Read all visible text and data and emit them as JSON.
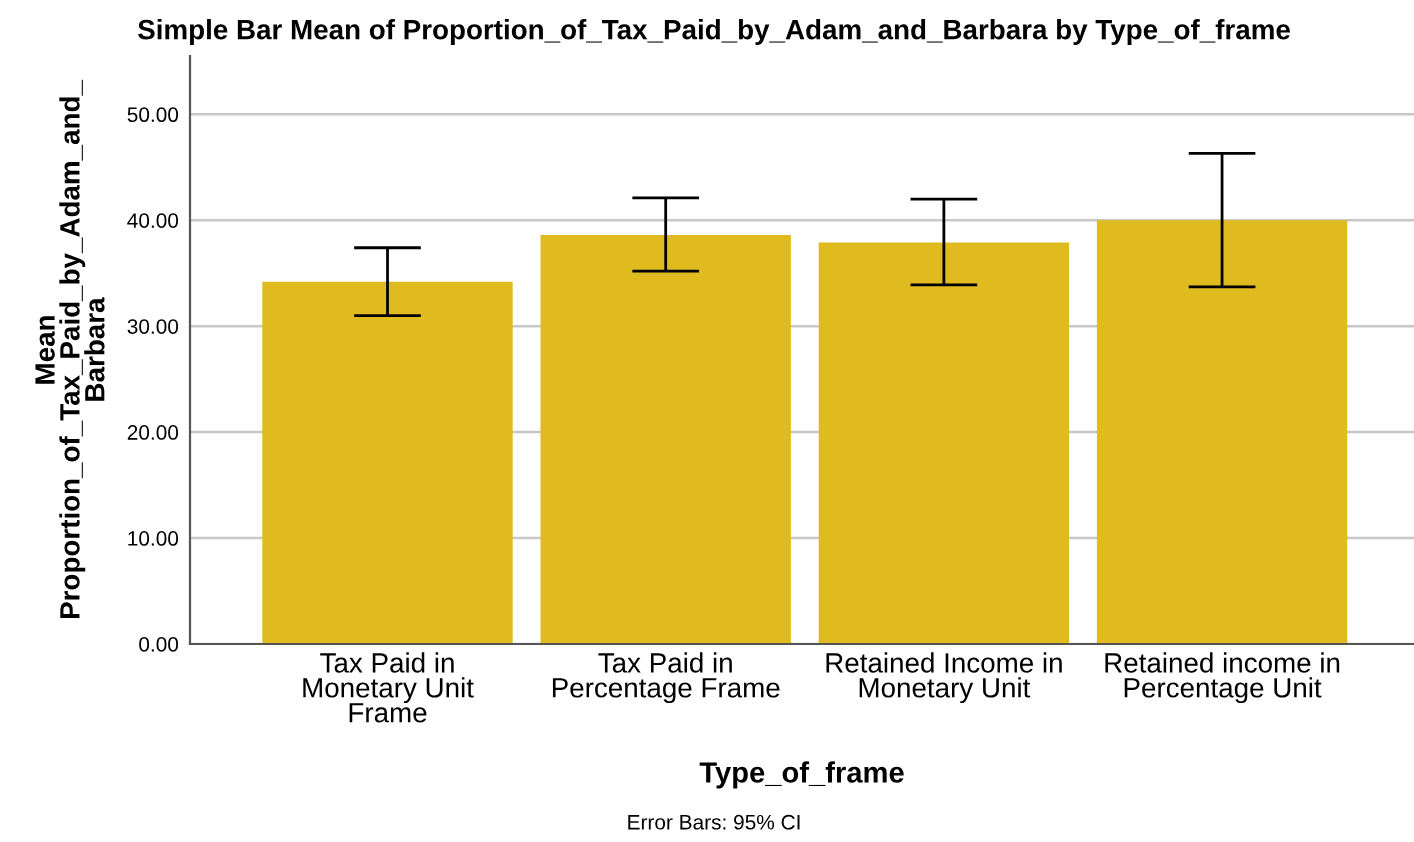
{
  "chart_data": {
    "type": "bar",
    "title": "Simple Bar Mean of Proportion_of_Tax_Paid_by_Adam_and_Barbara by Type_of_frame",
    "xlabel": "Type_of_frame",
    "ylabel": "Mean\nProportion_of_Tax_Paid_by_Adam_and_\nBarbara",
    "categories": [
      "Tax Paid in\nMonetary Unit\nFrame",
      "Tax Paid in\nPercentage Frame",
      "Retained Income in\nMonetary Unit",
      "Retained income in\nPercentage Unit"
    ],
    "values": [
      34.2,
      38.6,
      37.9,
      40.0
    ],
    "errors": [
      [
        31.0,
        37.4
      ],
      [
        35.2,
        42.1
      ],
      [
        33.9,
        42.0
      ],
      [
        33.7,
        46.3
      ]
    ],
    "color": "#e0bb1f",
    "ylim": [
      0,
      55.5
    ],
    "yticks": [
      {
        "value": 0,
        "label": "0.00"
      },
      {
        "value": 10,
        "label": "10.00"
      },
      {
        "value": 20,
        "label": "20.00"
      },
      {
        "value": 30,
        "label": "30.00"
      },
      {
        "value": 40,
        "label": "40.00"
      },
      {
        "value": 50,
        "label": "50.00"
      }
    ],
    "grid": "y",
    "annotations": [
      "Error Bars: 95% CI"
    ]
  }
}
